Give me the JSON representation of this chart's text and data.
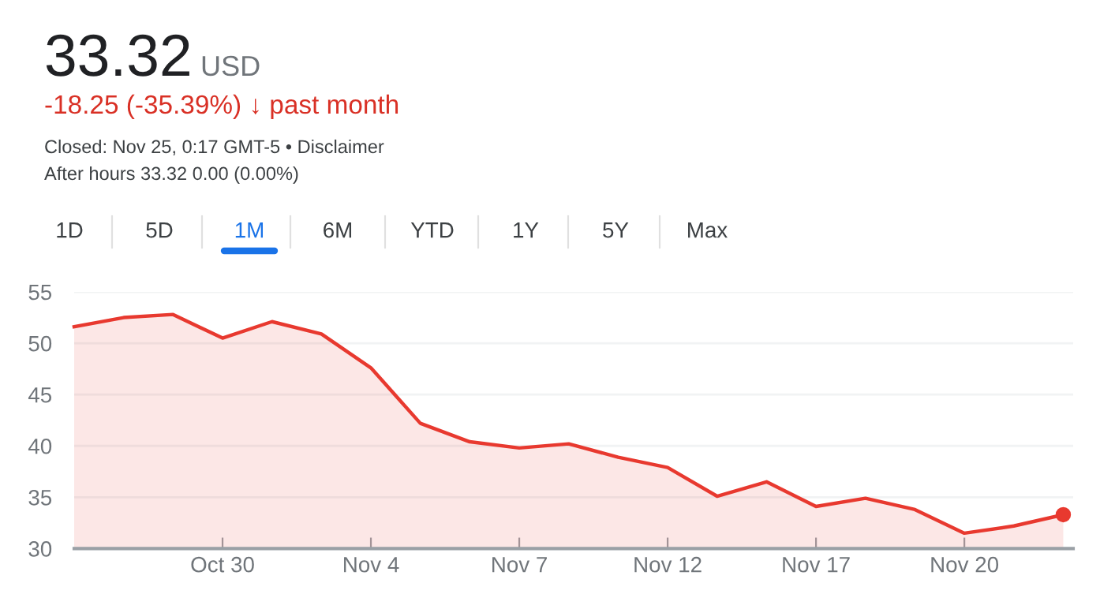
{
  "chart_data": {
    "type": "area",
    "title": "33.32",
    "annotations": [
      "USD",
      "-18.25 (-35.39%) ↓ past month",
      "Closed: Nov 25, 0:17 GMT-5 • Disclaimer",
      "After hours 33.32 0.00 (0.00%)",
      "1D",
      "5D",
      "1M",
      "6M",
      "YTD",
      "1Y",
      "5Y",
      "Max"
    ],
    "categories": [
      null,
      null,
      null,
      "Oct 30",
      null,
      null,
      "Nov 4",
      null,
      null,
      "Nov 7",
      null,
      null,
      "Nov 12",
      null,
      null,
      "Nov 17",
      null,
      null,
      "Nov 20",
      null,
      null
    ],
    "series": [
      {
        "color": "#e8392f",
        "values": [
          51.6,
          52.5,
          52.8,
          50.5,
          52.1,
          50.9,
          47.6,
          42.2,
          40.4,
          39.8,
          40.2,
          38.9,
          37.9,
          35.1,
          36.5,
          34.1,
          34.9,
          33.8,
          31.5,
          32.2,
          33.3
        ]
      }
    ],
    "ylim": [
      30,
      55
    ],
    "yticks": [
      30,
      35,
      40,
      45,
      50,
      55
    ],
    "grid": "y"
  }
}
